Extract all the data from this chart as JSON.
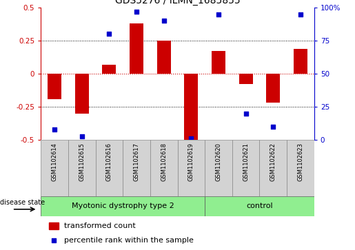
{
  "title": "GDS5276 / ILMN_1685855",
  "samples": [
    "GSM1102614",
    "GSM1102615",
    "GSM1102616",
    "GSM1102617",
    "GSM1102618",
    "GSM1102619",
    "GSM1102620",
    "GSM1102621",
    "GSM1102622",
    "GSM1102623"
  ],
  "bar_values": [
    -0.19,
    -0.3,
    0.07,
    0.38,
    0.25,
    -0.5,
    0.17,
    -0.08,
    -0.22,
    0.19
  ],
  "dot_values": [
    8,
    3,
    80,
    97,
    90,
    1,
    95,
    20,
    10,
    95
  ],
  "bar_color": "#cc0000",
  "dot_color": "#0000cc",
  "group1_label": "Myotonic dystrophy type 2",
  "group2_label": "control",
  "group1_count": 6,
  "group2_count": 4,
  "disease_state_label": "disease state",
  "legend1": "transformed count",
  "legend2": "percentile rank within the sample",
  "ylim_left": [
    -0.5,
    0.5
  ],
  "ylim_right": [
    0,
    100
  ],
  "yticks_left": [
    -0.5,
    -0.25,
    0.0,
    0.25,
    0.5
  ],
  "ytick_labels_left": [
    "-0.5",
    "-0.25",
    "0",
    "0.25",
    "0.5"
  ],
  "yticks_right": [
    0,
    25,
    50,
    75,
    100
  ],
  "ytick_labels_right": [
    "0",
    "25",
    "50",
    "75",
    "100%"
  ],
  "hlines": [
    -0.25,
    0.0,
    0.25
  ],
  "background_color": "#ffffff",
  "sample_box_color": "#d3d3d3",
  "group_box_color": "#90EE90",
  "bar_width": 0.5,
  "xlim": [
    -0.5,
    9.5
  ]
}
